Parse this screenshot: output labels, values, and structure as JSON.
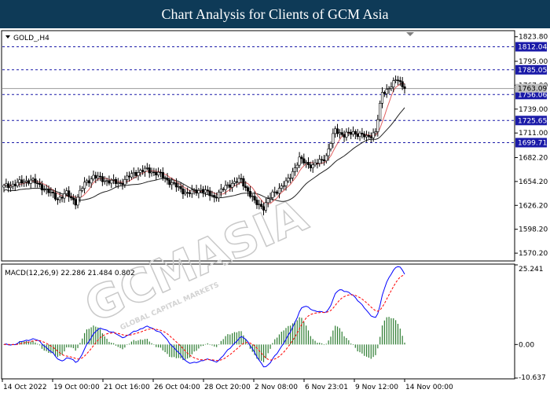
{
  "page": {
    "title": "Chart Analysis for Clients of GCM Asia"
  },
  "watermark": {
    "brand": "GCMASIA",
    "tagline": "GLOBAL CAPITAL MARKETS"
  },
  "chart_data": [
    {
      "type": "candlestick",
      "symbol_label": "GOLD_,H4",
      "y_ticks": [
        "1823.80",
        "1795.00",
        "1767.00",
        "1739.00",
        "1711.00",
        "1682.20",
        "1654.20",
        "1626.20",
        "1598.20",
        "1570.20"
      ],
      "ylim": [
        1562,
        1830
      ],
      "current_price": "1763.09",
      "levels": [
        {
          "value": 1812.04,
          "label": "1812.04"
        },
        {
          "value": 1785.05,
          "label": "1785.05"
        },
        {
          "value": 1756.06,
          "label": "1756.06"
        },
        {
          "value": 1725.65,
          "label": "1725.65"
        },
        {
          "value": 1699.71,
          "label": "1699.71"
        }
      ],
      "x_labels": [
        "14 Oct 2022",
        "19 Oct 00:00",
        "21 Oct 16:00",
        "26 Oct 04:00",
        "28 Oct 20:00",
        "2 Nov 08:00",
        "6 Nov 23:01",
        "9 Nov 12:00",
        "14 Nov 00:00"
      ],
      "close_anchors": [
        [
          0,
          1648
        ],
        [
          6,
          1652
        ],
        [
          12,
          1656
        ],
        [
          18,
          1646
        ],
        [
          24,
          1634
        ],
        [
          28,
          1640
        ],
        [
          32,
          1630
        ],
        [
          36,
          1652
        ],
        [
          40,
          1660
        ],
        [
          46,
          1655
        ],
        [
          52,
          1652
        ],
        [
          58,
          1664
        ],
        [
          64,
          1668
        ],
        [
          70,
          1662
        ],
        [
          76,
          1650
        ],
        [
          82,
          1640
        ],
        [
          88,
          1645
        ],
        [
          94,
          1636
        ],
        [
          100,
          1650
        ],
        [
          106,
          1656
        ],
        [
          112,
          1630
        ],
        [
          116,
          1624
        ],
        [
          120,
          1640
        ],
        [
          126,
          1652
        ],
        [
          132,
          1680
        ],
        [
          138,
          1672
        ],
        [
          144,
          1684
        ],
        [
          148,
          1715
        ],
        [
          152,
          1708
        ],
        [
          156,
          1712
        ],
        [
          162,
          1706
        ],
        [
          166,
          1712
        ],
        [
          169,
          1758
        ],
        [
          172,
          1764
        ],
        [
          176,
          1774
        ],
        [
          179,
          1763
        ]
      ],
      "series": [
        {
          "name": "",
          "kind": "ma_fast",
          "color": "#e06060",
          "period": 7
        },
        {
          "name": "",
          "kind": "ma_slow",
          "color": "#222222",
          "period": 18
        }
      ]
    },
    {
      "type": "macd",
      "label": "MACD(12,26,9) 22.286 21.484 0.802",
      "y_ticks": [
        "25.241",
        "0.00",
        "-10.637"
      ],
      "ylim": [
        -10.637,
        25.241
      ],
      "series": [
        {
          "name": "",
          "kind": "histogram",
          "color": "#2e7d32"
        },
        {
          "name": "",
          "kind": "macd",
          "color": "#0000ff"
        },
        {
          "name": "",
          "kind": "signal",
          "color": "#ff0000"
        }
      ]
    }
  ]
}
